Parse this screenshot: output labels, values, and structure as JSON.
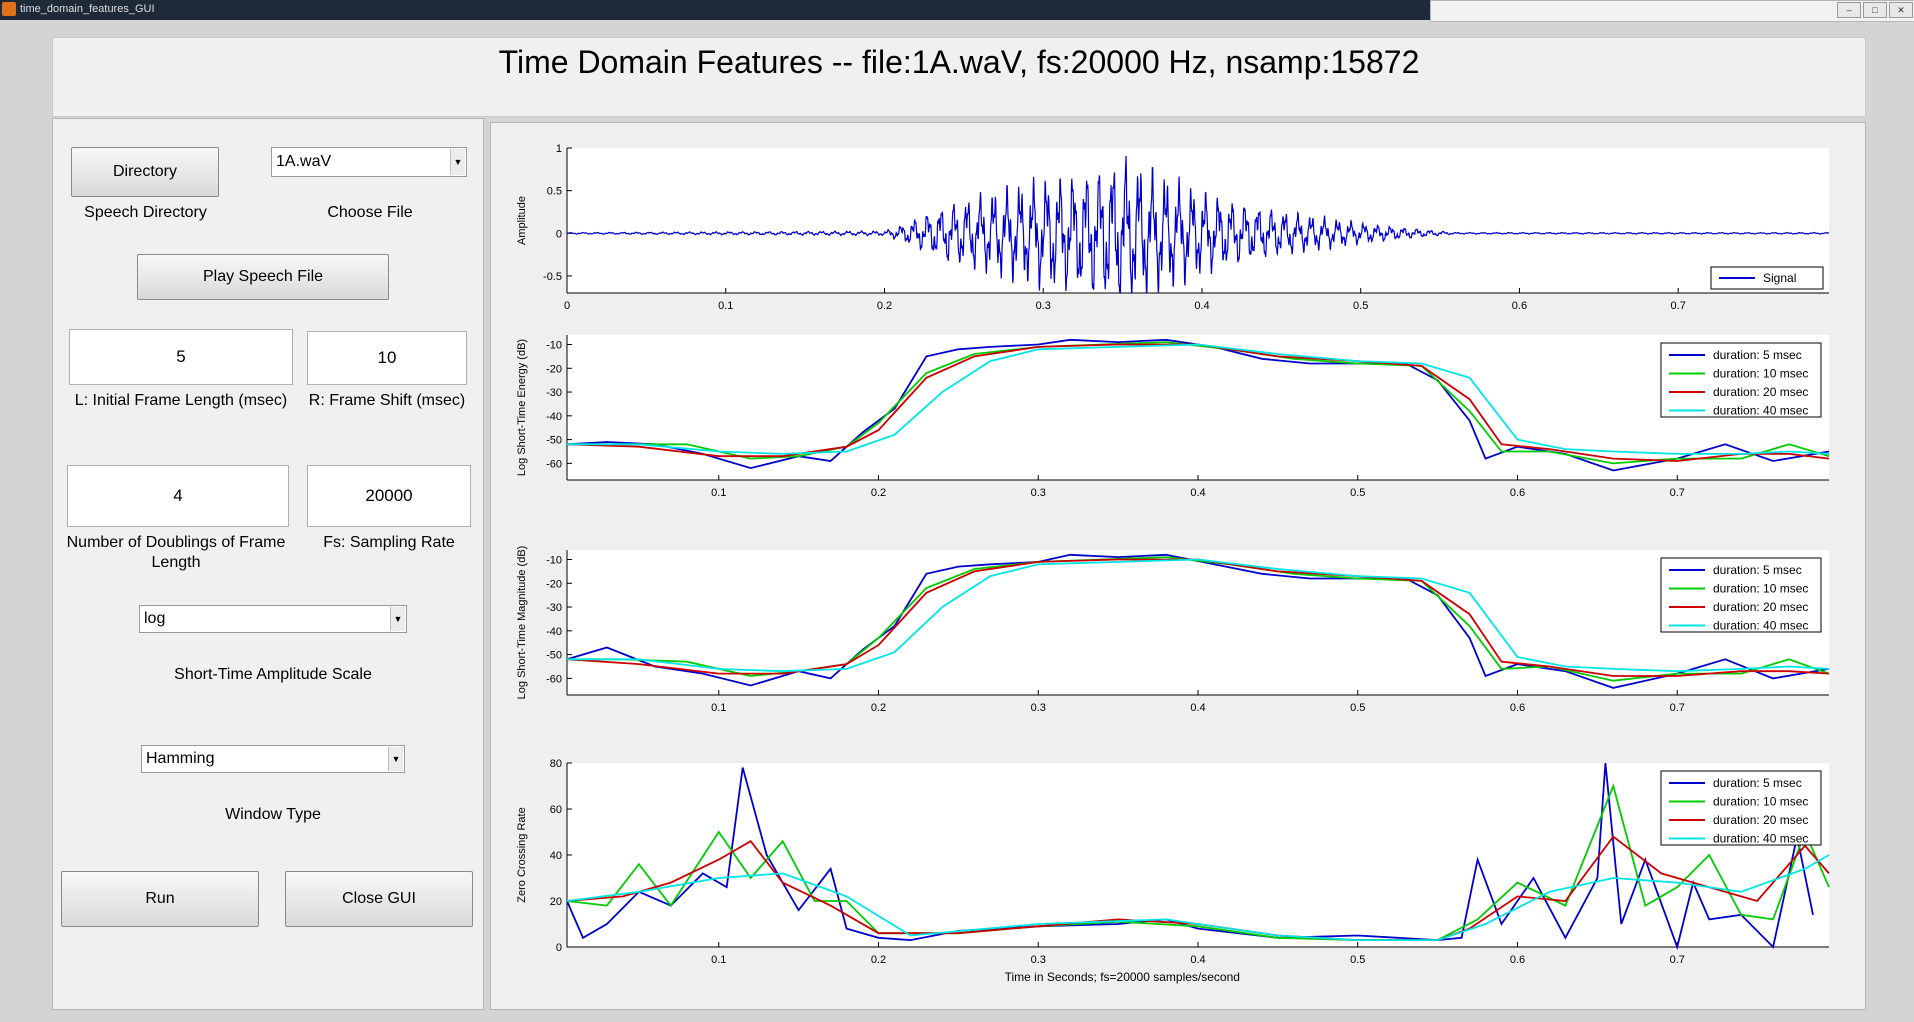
{
  "window": {
    "title": "time_domain_features_GUI"
  },
  "header": {
    "title": "Time Domain Features --  file:1A.waV, fs:20000 Hz, nsamp:15872"
  },
  "controls": {
    "directory_button": "Directory",
    "speech_directory_label": "Speech Directory",
    "file_select": "1A.waV",
    "choose_file_label": "Choose File",
    "play_button": "Play Speech File",
    "frame_length_value": "5",
    "frame_length_label": "L: Initial Frame Length (msec)",
    "frame_shift_value": "10",
    "frame_shift_label": "R: Frame Shift (msec)",
    "doublings_value": "4",
    "doublings_label": "Number of Doublings of Frame Length",
    "fs_value": "20000",
    "fs_label": "Fs: Sampling Rate",
    "scale_select": "log",
    "scale_label": "Short-Time Amplitude Scale",
    "window_select": "Hamming",
    "window_label": "Window Type",
    "run_button": "Run",
    "close_button": "Close GUI"
  },
  "colors": {
    "blue": "#0000cc",
    "green": "#00cc00",
    "red": "#cc0000",
    "cyan": "#00e5e5"
  },
  "chart_data": [
    {
      "type": "line",
      "ylabel": "Amplitude",
      "xlim": [
        0,
        0.795
      ],
      "ylim": [
        -0.7,
        1.0
      ],
      "xticks": [
        0,
        0.1,
        0.2,
        0.3,
        0.4,
        0.5,
        0.6,
        0.7
      ],
      "yticks": [
        1,
        0.5,
        0,
        -0.5
      ],
      "legend": [
        "Signal"
      ],
      "envelope": {
        "x": [
          0,
          0.2,
          0.21,
          0.22,
          0.24,
          0.26,
          0.28,
          0.3,
          0.32,
          0.34,
          0.35,
          0.36,
          0.38,
          0.4,
          0.42,
          0.44,
          0.46,
          0.48,
          0.5,
          0.52,
          0.54,
          0.56,
          0.795
        ],
        "y": [
          0.01,
          0.03,
          0.1,
          0.2,
          0.38,
          0.5,
          0.6,
          0.72,
          0.78,
          0.88,
          1.0,
          0.9,
          0.72,
          0.55,
          0.42,
          0.33,
          0.26,
          0.2,
          0.14,
          0.09,
          0.05,
          0.01,
          0.01
        ]
      }
    },
    {
      "type": "line",
      "ylabel": "Log Short-Time Energy (dB)",
      "xlim": [
        0.005,
        0.795
      ],
      "ylim": [
        -67,
        -6
      ],
      "xticks": [
        0.1,
        0.2,
        0.3,
        0.4,
        0.5,
        0.6,
        0.7
      ],
      "yticks": [
        -10,
        -20,
        -30,
        -40,
        -50,
        -60
      ],
      "series": [
        {
          "name": "duration:  5 msec",
          "color": "#0000cc",
          "x": [
            0.005,
            0.03,
            0.06,
            0.09,
            0.12,
            0.15,
            0.17,
            0.19,
            0.21,
            0.22,
            0.23,
            0.25,
            0.27,
            0.3,
            0.32,
            0.35,
            0.38,
            0.41,
            0.44,
            0.47,
            0.5,
            0.53,
            0.55,
            0.57,
            0.58,
            0.6,
            0.63,
            0.66,
            0.7,
            0.73,
            0.76,
            0.795
          ],
          "y": [
            -52,
            -51,
            -52,
            -56,
            -62,
            -57,
            -59,
            -47,
            -37,
            -26,
            -15,
            -12,
            -11,
            -10,
            -8,
            -9,
            -8,
            -11,
            -16,
            -18,
            -18,
            -18,
            -25,
            -42,
            -58,
            -53,
            -56,
            -63,
            -58,
            -52,
            -59,
            -55
          ]
        },
        {
          "name": "duration: 10 msec",
          "color": "#00cc00",
          "x": [
            0.005,
            0.04,
            0.08,
            0.12,
            0.15,
            0.18,
            0.2,
            0.23,
            0.26,
            0.3,
            0.34,
            0.38,
            0.42,
            0.46,
            0.5,
            0.54,
            0.57,
            0.59,
            0.62,
            0.66,
            0.7,
            0.74,
            0.77,
            0.795
          ],
          "y": [
            -52,
            -52,
            -52,
            -58,
            -57,
            -53,
            -43,
            -22,
            -14,
            -11,
            -10,
            -9,
            -12,
            -16,
            -18,
            -19,
            -38,
            -55,
            -55,
            -60,
            -58,
            -58,
            -52,
            -57
          ]
        },
        {
          "name": "duration: 20 msec",
          "color": "#cc0000",
          "x": [
            0.005,
            0.05,
            0.1,
            0.14,
            0.18,
            0.2,
            0.23,
            0.26,
            0.3,
            0.35,
            0.4,
            0.45,
            0.5,
            0.54,
            0.57,
            0.59,
            0.62,
            0.66,
            0.7,
            0.74,
            0.77,
            0.795
          ],
          "y": [
            -52,
            -53,
            -57,
            -57,
            -53,
            -46,
            -24,
            -15,
            -11,
            -10,
            -10,
            -15,
            -17,
            -19,
            -33,
            -52,
            -54,
            -58,
            -59,
            -56,
            -56,
            -58
          ]
        },
        {
          "name": "duration: 40 msec",
          "color": "#00e5e5",
          "x": [
            0.005,
            0.05,
            0.1,
            0.14,
            0.18,
            0.21,
            0.24,
            0.27,
            0.3,
            0.35,
            0.4,
            0.45,
            0.5,
            0.54,
            0.57,
            0.6,
            0.63,
            0.66,
            0.7,
            0.74,
            0.77,
            0.795
          ],
          "y": [
            -52,
            -52,
            -55,
            -56,
            -55,
            -48,
            -30,
            -17,
            -12,
            -11,
            -10,
            -14,
            -17,
            -18,
            -24,
            -50,
            -54,
            -55,
            -56,
            -56,
            -55,
            -56
          ]
        }
      ]
    },
    {
      "type": "line",
      "ylabel": "Log Short-Time Magnitude (dB)",
      "xlim": [
        0.005,
        0.795
      ],
      "ylim": [
        -67,
        -6
      ],
      "xticks": [
        0.1,
        0.2,
        0.3,
        0.4,
        0.5,
        0.6,
        0.7
      ],
      "yticks": [
        -10,
        -20,
        -30,
        -40,
        -50,
        -60
      ],
      "series": [
        {
          "name": "duration:  5 msec",
          "color": "#0000cc",
          "x": [
            0.005,
            0.03,
            0.06,
            0.09,
            0.12,
            0.15,
            0.17,
            0.19,
            0.21,
            0.22,
            0.23,
            0.25,
            0.27,
            0.3,
            0.32,
            0.35,
            0.38,
            0.41,
            0.44,
            0.47,
            0.5,
            0.53,
            0.55,
            0.57,
            0.58,
            0.6,
            0.63,
            0.66,
            0.7,
            0.73,
            0.76,
            0.795
          ],
          "y": [
            -52,
            -47,
            -55,
            -58,
            -63,
            -57,
            -60,
            -48,
            -38,
            -27,
            -16,
            -13,
            -12,
            -11,
            -8,
            -9,
            -8,
            -12,
            -16,
            -18,
            -18,
            -18,
            -25,
            -43,
            -59,
            -54,
            -57,
            -64,
            -58,
            -52,
            -60,
            -56
          ]
        },
        {
          "name": "duration: 10 msec",
          "color": "#00cc00",
          "x": [
            0.005,
            0.04,
            0.08,
            0.12,
            0.15,
            0.18,
            0.2,
            0.23,
            0.26,
            0.3,
            0.34,
            0.38,
            0.42,
            0.46,
            0.5,
            0.54,
            0.57,
            0.59,
            0.62,
            0.66,
            0.7,
            0.74,
            0.77,
            0.795
          ],
          "y": [
            -52,
            -52,
            -53,
            -59,
            -57,
            -54,
            -43,
            -22,
            -14,
            -11,
            -10,
            -9,
            -12,
            -16,
            -18,
            -19,
            -38,
            -56,
            -55,
            -61,
            -58,
            -58,
            -52,
            -58
          ]
        },
        {
          "name": "duration: 20 msec",
          "color": "#cc0000",
          "x": [
            0.005,
            0.05,
            0.1,
            0.14,
            0.18,
            0.2,
            0.23,
            0.26,
            0.3,
            0.35,
            0.4,
            0.45,
            0.5,
            0.54,
            0.57,
            0.59,
            0.62,
            0.66,
            0.7,
            0.74,
            0.77,
            0.795
          ],
          "y": [
            -52,
            -54,
            -58,
            -58,
            -54,
            -46,
            -24,
            -15,
            -11,
            -10,
            -10,
            -15,
            -17,
            -19,
            -33,
            -53,
            -55,
            -59,
            -59,
            -57,
            -57,
            -58
          ]
        },
        {
          "name": "duration: 40 msec",
          "color": "#00e5e5",
          "x": [
            0.005,
            0.05,
            0.1,
            0.14,
            0.18,
            0.21,
            0.24,
            0.27,
            0.3,
            0.35,
            0.4,
            0.45,
            0.5,
            0.54,
            0.57,
            0.6,
            0.63,
            0.66,
            0.7,
            0.74,
            0.77,
            0.795
          ],
          "y": [
            -52,
            -52,
            -56,
            -57,
            -56,
            -49,
            -30,
            -17,
            -12,
            -11,
            -10,
            -14,
            -17,
            -18,
            -24,
            -51,
            -55,
            -56,
            -57,
            -56,
            -55,
            -56
          ]
        }
      ]
    },
    {
      "type": "line",
      "ylabel": "Zero Crossing Rate",
      "xlabel": "Time in Seconds; fs=20000 samples/second",
      "xlim": [
        0.005,
        0.795
      ],
      "ylim": [
        0,
        80
      ],
      "xticks": [
        0.1,
        0.2,
        0.3,
        0.4,
        0.5,
        0.6,
        0.7
      ],
      "yticks": [
        80,
        60,
        40,
        20,
        0
      ],
      "series": [
        {
          "name": "duration:  5 msec",
          "color": "#0000cc",
          "x": [
            0.005,
            0.015,
            0.03,
            0.05,
            0.07,
            0.09,
            0.105,
            0.115,
            0.13,
            0.15,
            0.17,
            0.18,
            0.2,
            0.22,
            0.25,
            0.3,
            0.35,
            0.38,
            0.4,
            0.45,
            0.5,
            0.55,
            0.565,
            0.575,
            0.59,
            0.61,
            0.63,
            0.65,
            0.655,
            0.665,
            0.68,
            0.7,
            0.71,
            0.72,
            0.74,
            0.76,
            0.775,
            0.785
          ],
          "y": [
            20,
            4,
            10,
            24,
            18,
            32,
            26,
            78,
            40,
            16,
            34,
            8,
            4,
            3,
            7,
            9,
            10,
            12,
            8,
            4,
            5,
            3,
            4,
            38,
            10,
            30,
            4,
            30,
            81,
            10,
            38,
            0,
            28,
            12,
            14,
            0,
            48,
            14
          ]
        },
        {
          "name": "duration: 10 msec",
          "color": "#00cc00",
          "x": [
            0.005,
            0.03,
            0.05,
            0.07,
            0.1,
            0.12,
            0.14,
            0.16,
            0.18,
            0.2,
            0.25,
            0.3,
            0.35,
            0.4,
            0.45,
            0.5,
            0.55,
            0.575,
            0.6,
            0.63,
            0.66,
            0.68,
            0.7,
            0.72,
            0.74,
            0.76,
            0.78,
            0.795
          ],
          "y": [
            20,
            18,
            36,
            18,
            50,
            30,
            46,
            20,
            20,
            6,
            6,
            9,
            11,
            9,
            4,
            3,
            3,
            12,
            28,
            18,
            70,
            18,
            26,
            40,
            14,
            12,
            50,
            26
          ]
        },
        {
          "name": "duration: 20 msec",
          "color": "#cc0000",
          "x": [
            0.005,
            0.04,
            0.07,
            0.1,
            0.12,
            0.14,
            0.17,
            0.2,
            0.25,
            0.3,
            0.35,
            0.4,
            0.45,
            0.5,
            0.55,
            0.57,
            0.6,
            0.63,
            0.66,
            0.69,
            0.72,
            0.75,
            0.78,
            0.795
          ],
          "y": [
            20,
            22,
            28,
            38,
            46,
            28,
            18,
            6,
            6,
            9,
            12,
            10,
            5,
            3,
            3,
            8,
            22,
            20,
            48,
            32,
            26,
            20,
            44,
            32
          ]
        },
        {
          "name": "duration: 40 msec",
          "color": "#00e5e5",
          "x": [
            0.005,
            0.05,
            0.1,
            0.14,
            0.18,
            0.22,
            0.3,
            0.38,
            0.45,
            0.5,
            0.55,
            0.58,
            0.62,
            0.66,
            0.7,
            0.74,
            0.78,
            0.795
          ],
          "y": [
            20,
            24,
            30,
            32,
            22,
            5,
            10,
            12,
            5,
            3,
            3,
            10,
            24,
            30,
            28,
            24,
            34,
            40
          ]
        }
      ]
    }
  ]
}
